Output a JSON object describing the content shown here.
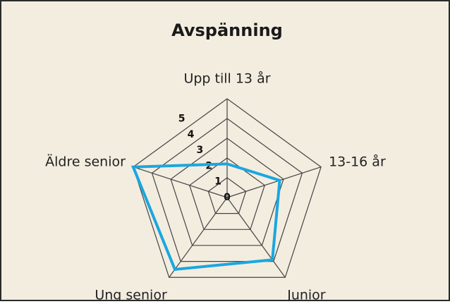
{
  "chart_data": {
    "type": "radar",
    "title": "Avspänning",
    "categories": [
      "Upp till 13 år",
      "13-16 år",
      "Junior",
      "Ung senior",
      "Äldre senior"
    ],
    "series": [
      {
        "name": "Avspänning",
        "color": "#1aa7e0",
        "values": [
          1.7,
          2.8,
          3.9,
          4.5,
          5
        ]
      }
    ],
    "ylim": [
      0,
      5
    ],
    "yticks": [
      0,
      1,
      2,
      3,
      4,
      5
    ],
    "grid": true
  }
}
